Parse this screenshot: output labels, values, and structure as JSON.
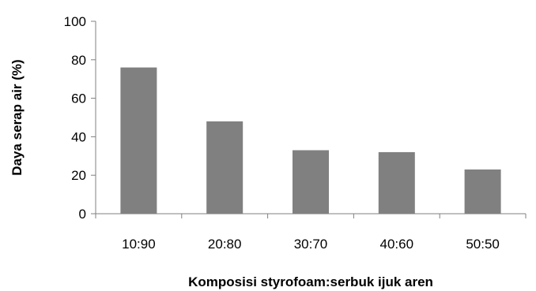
{
  "chart_data": {
    "type": "bar",
    "title": "",
    "xlabel": "Komposisi styrofoam:serbuk ijuk aren",
    "ylabel": "Daya serap air (%)",
    "categories": [
      "10:90",
      "20:80",
      "30:70",
      "40:60",
      "50:50"
    ],
    "values": [
      76,
      48,
      33,
      32,
      23
    ],
    "ylim": [
      0,
      100
    ],
    "yticks": [
      0,
      20,
      40,
      60,
      80,
      100
    ],
    "grid": false,
    "legend": "none",
    "bar_color": "#808080",
    "axis_color": "#808080"
  }
}
